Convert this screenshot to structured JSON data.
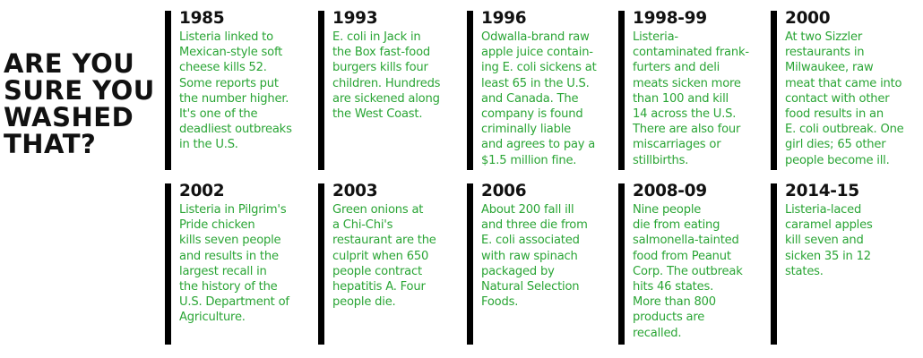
{
  "headline": [
    "ARE YOU",
    "SURE YOU",
    "WASHED",
    "THAT?"
  ],
  "timeline": [
    {
      "year": "1985",
      "lines": [
        "Listeria linked to",
        "Mexican-style soft",
        "cheese kills 52.",
        "Some reports put",
        "the number higher.",
        "It's one of the",
        "deadliest outbreaks",
        "in the U.S."
      ]
    },
    {
      "year": "1993",
      "lines": [
        "E. coli in Jack in",
        "the Box fast-food",
        "burgers kills four",
        "children. Hundreds",
        "are sickened along",
        "the West Coast."
      ]
    },
    {
      "year": "1996",
      "lines": [
        "Odwalla-brand raw",
        "apple juice contain-",
        "ing E. coli sickens at",
        "least 65 in the U.S.",
        "and Canada. The",
        "company is found",
        "criminally liable",
        "and agrees to pay a",
        "$1.5 million fine."
      ]
    },
    {
      "year": "1998-99",
      "lines": [
        "Listeria-",
        "contaminated frank-",
        "furters and deli",
        "meats sicken more",
        "than 100 and kill",
        "14 across the U.S.",
        "There are also four",
        "miscarriages or",
        "stillbirths."
      ]
    },
    {
      "year": "2000",
      "lines": [
        "At two Sizzler",
        "restaurants in",
        "Milwaukee, raw",
        "meat that came into",
        "contact with other",
        "food results in an",
        "E. coli outbreak. One",
        "girl dies; 65 other",
        "people become ill."
      ]
    },
    {
      "year": "2002",
      "lines": [
        "Listeria in Pilgrim's",
        "Pride chicken",
        "kills seven people",
        "and results in the",
        "largest recall in",
        "the history of the",
        "U.S. Department of",
        "Agriculture."
      ]
    },
    {
      "year": "2003",
      "lines": [
        "Green onions at",
        "a Chi-Chi's",
        "restaurant are the",
        "culprit when 650",
        "people contract",
        "hepatitis A. Four",
        "people die."
      ]
    },
    {
      "year": "2006",
      "lines": [
        "About 200 fall ill",
        "and three die from",
        "E. coli associated",
        "with raw spinach",
        "packaged by",
        "Natural Selection",
        "Foods."
      ]
    },
    {
      "year": "2008-09",
      "lines": [
        "Nine people",
        "die from eating",
        "salmonella-tainted",
        "food from Peanut",
        "Corp. The outbreak",
        "hits 46 states.",
        "More than 800",
        "products are",
        "recalled."
      ]
    },
    {
      "year": "2014-15",
      "lines": [
        "Listeria-laced",
        "caramel apples",
        "kill seven and",
        "sicken 35 in 12",
        "states."
      ]
    }
  ],
  "colors": {
    "accent_text": "#2aa535",
    "ink": "#111111",
    "bar": "#000000"
  }
}
